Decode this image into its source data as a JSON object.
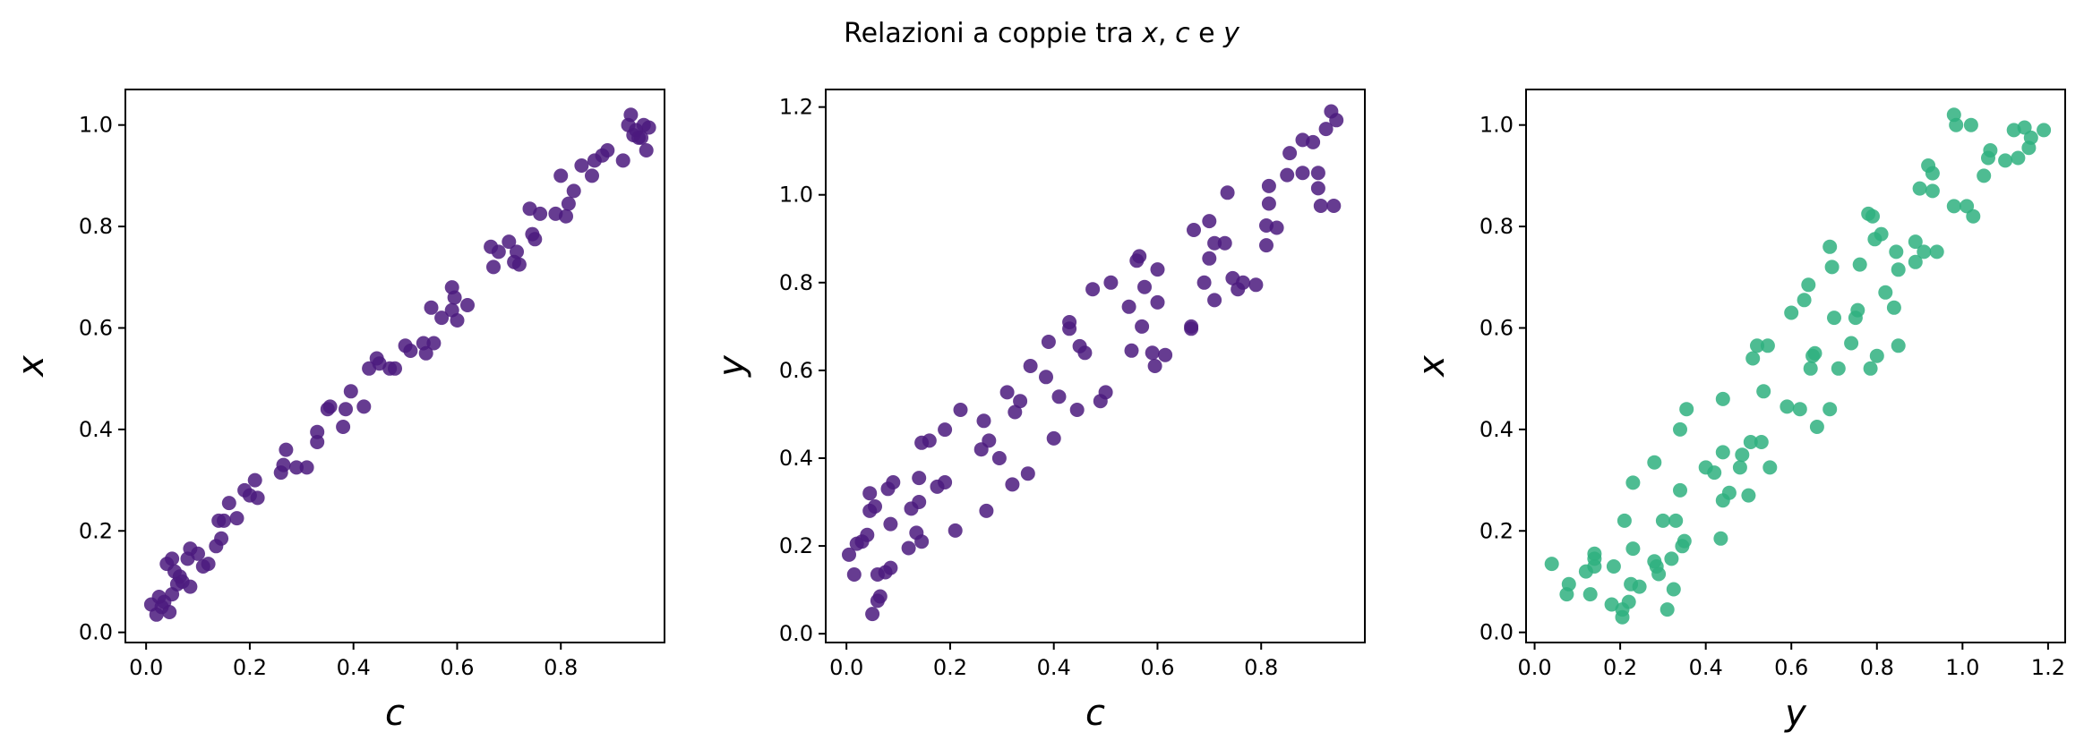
{
  "figure": {
    "title_prefix": "Relazioni a coppie tra ",
    "title_var1": "x",
    "title_sep": ", ",
    "title_var2": "c",
    "title_join": " e ",
    "title_var3": "y"
  },
  "colors": {
    "purple": "#4b1a7e",
    "green": "#2fb07f"
  },
  "chart_data": [
    {
      "type": "scatter",
      "xlabel": "c",
      "ylabel": "x",
      "xlim": [
        -0.04,
        1.0
      ],
      "ylim": [
        -0.02,
        1.07
      ],
      "xticks": [
        0.0,
        0.2,
        0.4,
        0.6,
        0.8
      ],
      "yticks": [
        0.0,
        0.2,
        0.4,
        0.6,
        0.8,
        1.0
      ],
      "tick_decimals": 1,
      "color": "#4b1a7e",
      "points": [
        [
          0.01,
          0.055
        ],
        [
          0.02,
          0.035
        ],
        [
          0.025,
          0.07
        ],
        [
          0.03,
          0.05
        ],
        [
          0.035,
          0.06
        ],
        [
          0.04,
          0.135
        ],
        [
          0.045,
          0.04
        ],
        [
          0.05,
          0.145
        ],
        [
          0.05,
          0.075
        ],
        [
          0.055,
          0.12
        ],
        [
          0.06,
          0.095
        ],
        [
          0.065,
          0.11
        ],
        [
          0.07,
          0.1
        ],
        [
          0.08,
          0.145
        ],
        [
          0.085,
          0.165
        ],
        [
          0.085,
          0.09
        ],
        [
          0.1,
          0.155
        ],
        [
          0.11,
          0.13
        ],
        [
          0.12,
          0.135
        ],
        [
          0.135,
          0.17
        ],
        [
          0.14,
          0.22
        ],
        [
          0.145,
          0.185
        ],
        [
          0.15,
          0.22
        ],
        [
          0.16,
          0.255
        ],
        [
          0.175,
          0.225
        ],
        [
          0.19,
          0.28
        ],
        [
          0.2,
          0.27
        ],
        [
          0.21,
          0.3
        ],
        [
          0.215,
          0.265
        ],
        [
          0.26,
          0.315
        ],
        [
          0.265,
          0.33
        ],
        [
          0.27,
          0.36
        ],
        [
          0.29,
          0.325
        ],
        [
          0.31,
          0.325
        ],
        [
          0.33,
          0.375
        ],
        [
          0.33,
          0.395
        ],
        [
          0.35,
          0.44
        ],
        [
          0.355,
          0.445
        ],
        [
          0.38,
          0.405
        ],
        [
          0.385,
          0.44
        ],
        [
          0.395,
          0.475
        ],
        [
          0.42,
          0.445
        ],
        [
          0.43,
          0.52
        ],
        [
          0.445,
          0.54
        ],
        [
          0.45,
          0.53
        ],
        [
          0.47,
          0.52
        ],
        [
          0.48,
          0.52
        ],
        [
          0.5,
          0.565
        ],
        [
          0.51,
          0.555
        ],
        [
          0.535,
          0.57
        ],
        [
          0.54,
          0.55
        ],
        [
          0.55,
          0.64
        ],
        [
          0.555,
          0.57
        ],
        [
          0.57,
          0.62
        ],
        [
          0.59,
          0.635
        ],
        [
          0.59,
          0.68
        ],
        [
          0.595,
          0.66
        ],
        [
          0.6,
          0.615
        ],
        [
          0.62,
          0.645
        ],
        [
          0.665,
          0.76
        ],
        [
          0.67,
          0.72
        ],
        [
          0.68,
          0.75
        ],
        [
          0.7,
          0.77
        ],
        [
          0.71,
          0.73
        ],
        [
          0.715,
          0.75
        ],
        [
          0.72,
          0.725
        ],
        [
          0.74,
          0.835
        ],
        [
          0.745,
          0.785
        ],
        [
          0.75,
          0.775
        ],
        [
          0.76,
          0.825
        ],
        [
          0.79,
          0.825
        ],
        [
          0.8,
          0.9
        ],
        [
          0.81,
          0.82
        ],
        [
          0.815,
          0.845
        ],
        [
          0.825,
          0.87
        ],
        [
          0.84,
          0.92
        ],
        [
          0.86,
          0.9
        ],
        [
          0.865,
          0.93
        ],
        [
          0.88,
          0.94
        ],
        [
          0.89,
          0.95
        ],
        [
          0.92,
          0.93
        ],
        [
          0.93,
          1.0
        ],
        [
          0.935,
          1.02
        ],
        [
          0.94,
          0.98
        ],
        [
          0.945,
          0.99
        ],
        [
          0.95,
          0.975
        ],
        [
          0.955,
          0.975
        ],
        [
          0.96,
          1.0
        ],
        [
          0.965,
          0.95
        ],
        [
          0.97,
          0.995
        ]
      ]
    },
    {
      "type": "scatter",
      "xlabel": "c",
      "ylabel": "y",
      "xlim": [
        -0.04,
        1.0
      ],
      "ylim": [
        -0.02,
        1.24
      ],
      "xticks": [
        0.0,
        0.2,
        0.4,
        0.6,
        0.8
      ],
      "yticks": [
        0.0,
        0.2,
        0.4,
        0.6,
        0.8,
        1.0,
        1.2
      ],
      "tick_decimals": 1,
      "color": "#4b1a7e",
      "points": [
        [
          0.005,
          0.18
        ],
        [
          0.015,
          0.135
        ],
        [
          0.02,
          0.205
        ],
        [
          0.03,
          0.21
        ],
        [
          0.04,
          0.225
        ],
        [
          0.045,
          0.28
        ],
        [
          0.045,
          0.32
        ],
        [
          0.05,
          0.045
        ],
        [
          0.055,
          0.29
        ],
        [
          0.06,
          0.075
        ],
        [
          0.06,
          0.135
        ],
        [
          0.065,
          0.085
        ],
        [
          0.075,
          0.14
        ],
        [
          0.08,
          0.33
        ],
        [
          0.085,
          0.15
        ],
        [
          0.085,
          0.25
        ],
        [
          0.09,
          0.345
        ],
        [
          0.12,
          0.195
        ],
        [
          0.125,
          0.285
        ],
        [
          0.135,
          0.23
        ],
        [
          0.14,
          0.3
        ],
        [
          0.14,
          0.355
        ],
        [
          0.145,
          0.21
        ],
        [
          0.145,
          0.435
        ],
        [
          0.16,
          0.44
        ],
        [
          0.175,
          0.335
        ],
        [
          0.19,
          0.345
        ],
        [
          0.19,
          0.465
        ],
        [
          0.21,
          0.235
        ],
        [
          0.22,
          0.51
        ],
        [
          0.26,
          0.42
        ],
        [
          0.265,
          0.485
        ],
        [
          0.27,
          0.28
        ],
        [
          0.275,
          0.44
        ],
        [
          0.295,
          0.4
        ],
        [
          0.31,
          0.55
        ],
        [
          0.32,
          0.34
        ],
        [
          0.325,
          0.505
        ],
        [
          0.335,
          0.53
        ],
        [
          0.35,
          0.365
        ],
        [
          0.355,
          0.61
        ],
        [
          0.385,
          0.585
        ],
        [
          0.39,
          0.665
        ],
        [
          0.4,
          0.445
        ],
        [
          0.41,
          0.54
        ],
        [
          0.43,
          0.695
        ],
        [
          0.43,
          0.71
        ],
        [
          0.445,
          0.51
        ],
        [
          0.45,
          0.655
        ],
        [
          0.46,
          0.64
        ],
        [
          0.475,
          0.785
        ],
        [
          0.49,
          0.53
        ],
        [
          0.5,
          0.55
        ],
        [
          0.51,
          0.8
        ],
        [
          0.545,
          0.745
        ],
        [
          0.55,
          0.645
        ],
        [
          0.56,
          0.85
        ],
        [
          0.565,
          0.86
        ],
        [
          0.57,
          0.7
        ],
        [
          0.575,
          0.79
        ],
        [
          0.59,
          0.64
        ],
        [
          0.595,
          0.61
        ],
        [
          0.6,
          0.83
        ],
        [
          0.6,
          0.755
        ],
        [
          0.615,
          0.635
        ],
        [
          0.665,
          0.695
        ],
        [
          0.665,
          0.7
        ],
        [
          0.67,
          0.92
        ],
        [
          0.69,
          0.8
        ],
        [
          0.7,
          0.855
        ],
        [
          0.7,
          0.94
        ],
        [
          0.71,
          0.76
        ],
        [
          0.71,
          0.89
        ],
        [
          0.73,
          0.89
        ],
        [
          0.735,
          1.005
        ],
        [
          0.745,
          0.81
        ],
        [
          0.755,
          0.785
        ],
        [
          0.765,
          0.8
        ],
        [
          0.79,
          0.795
        ],
        [
          0.81,
          0.93
        ],
        [
          0.81,
          0.885
        ],
        [
          0.815,
          0.98
        ],
        [
          0.815,
          1.02
        ],
        [
          0.83,
          0.925
        ],
        [
          0.85,
          1.045
        ],
        [
          0.855,
          1.095
        ],
        [
          0.88,
          1.125
        ],
        [
          0.88,
          1.05
        ],
        [
          0.9,
          1.12
        ],
        [
          0.91,
          1.015
        ],
        [
          0.91,
          1.05
        ],
        [
          0.915,
          0.975
        ],
        [
          0.925,
          1.15
        ],
        [
          0.935,
          1.19
        ],
        [
          0.94,
          0.975
        ],
        [
          0.945,
          1.17
        ]
      ]
    },
    {
      "type": "scatter",
      "xlabel": "y",
      "ylabel": "x",
      "xlim": [
        -0.02,
        1.24
      ],
      "ylim": [
        -0.02,
        1.07
      ],
      "xticks": [
        0.0,
        0.2,
        0.4,
        0.6,
        0.8,
        1.0,
        1.2
      ],
      "yticks": [
        0.0,
        0.2,
        0.4,
        0.6,
        0.8,
        1.0
      ],
      "tick_decimals": 1,
      "color": "#2fb07f",
      "points": [
        [
          0.04,
          0.135
        ],
        [
          0.075,
          0.075
        ],
        [
          0.08,
          0.095
        ],
        [
          0.12,
          0.12
        ],
        [
          0.13,
          0.075
        ],
        [
          0.14,
          0.145
        ],
        [
          0.14,
          0.155
        ],
        [
          0.14,
          0.13
        ],
        [
          0.18,
          0.055
        ],
        [
          0.185,
          0.13
        ],
        [
          0.205,
          0.03
        ],
        [
          0.205,
          0.045
        ],
        [
          0.21,
          0.22
        ],
        [
          0.22,
          0.06
        ],
        [
          0.225,
          0.095
        ],
        [
          0.23,
          0.165
        ],
        [
          0.23,
          0.295
        ],
        [
          0.245,
          0.09
        ],
        [
          0.28,
          0.335
        ],
        [
          0.28,
          0.14
        ],
        [
          0.285,
          0.13
        ],
        [
          0.29,
          0.115
        ],
        [
          0.3,
          0.22
        ],
        [
          0.31,
          0.045
        ],
        [
          0.32,
          0.145
        ],
        [
          0.325,
          0.085
        ],
        [
          0.33,
          0.22
        ],
        [
          0.34,
          0.28
        ],
        [
          0.34,
          0.4
        ],
        [
          0.345,
          0.17
        ],
        [
          0.35,
          0.18
        ],
        [
          0.355,
          0.44
        ],
        [
          0.4,
          0.325
        ],
        [
          0.42,
          0.315
        ],
        [
          0.435,
          0.185
        ],
        [
          0.44,
          0.26
        ],
        [
          0.44,
          0.355
        ],
        [
          0.44,
          0.46
        ],
        [
          0.455,
          0.275
        ],
        [
          0.48,
          0.325
        ],
        [
          0.485,
          0.35
        ],
        [
          0.5,
          0.27
        ],
        [
          0.505,
          0.375
        ],
        [
          0.51,
          0.54
        ],
        [
          0.52,
          0.565
        ],
        [
          0.53,
          0.375
        ],
        [
          0.535,
          0.475
        ],
        [
          0.545,
          0.565
        ],
        [
          0.55,
          0.325
        ],
        [
          0.59,
          0.445
        ],
        [
          0.6,
          0.63
        ],
        [
          0.62,
          0.44
        ],
        [
          0.63,
          0.655
        ],
        [
          0.64,
          0.685
        ],
        [
          0.645,
          0.52
        ],
        [
          0.65,
          0.545
        ],
        [
          0.655,
          0.55
        ],
        [
          0.66,
          0.405
        ],
        [
          0.69,
          0.44
        ],
        [
          0.69,
          0.76
        ],
        [
          0.695,
          0.72
        ],
        [
          0.7,
          0.62
        ],
        [
          0.71,
          0.52
        ],
        [
          0.74,
          0.57
        ],
        [
          0.75,
          0.62
        ],
        [
          0.755,
          0.635
        ],
        [
          0.76,
          0.725
        ],
        [
          0.78,
          0.825
        ],
        [
          0.785,
          0.52
        ],
        [
          0.79,
          0.82
        ],
        [
          0.795,
          0.775
        ],
        [
          0.8,
          0.545
        ],
        [
          0.81,
          0.785
        ],
        [
          0.82,
          0.67
        ],
        [
          0.84,
          0.64
        ],
        [
          0.845,
          0.75
        ],
        [
          0.85,
          0.715
        ],
        [
          0.85,
          0.565
        ],
        [
          0.89,
          0.73
        ],
        [
          0.89,
          0.77
        ],
        [
          0.9,
          0.875
        ],
        [
          0.91,
          0.75
        ],
        [
          0.92,
          0.92
        ],
        [
          0.93,
          0.905
        ],
        [
          0.93,
          0.87
        ],
        [
          0.94,
          0.75
        ],
        [
          0.98,
          0.84
        ],
        [
          0.98,
          1.02
        ],
        [
          0.985,
          1.0
        ],
        [
          1.01,
          0.84
        ],
        [
          1.02,
          1.0
        ],
        [
          1.025,
          0.82
        ],
        [
          1.05,
          0.9
        ],
        [
          1.06,
          0.935
        ],
        [
          1.065,
          0.95
        ],
        [
          1.1,
          0.93
        ],
        [
          1.12,
          0.99
        ],
        [
          1.13,
          0.935
        ],
        [
          1.145,
          0.995
        ],
        [
          1.155,
          0.955
        ],
        [
          1.16,
          0.975
        ],
        [
          1.19,
          0.99
        ]
      ]
    }
  ]
}
